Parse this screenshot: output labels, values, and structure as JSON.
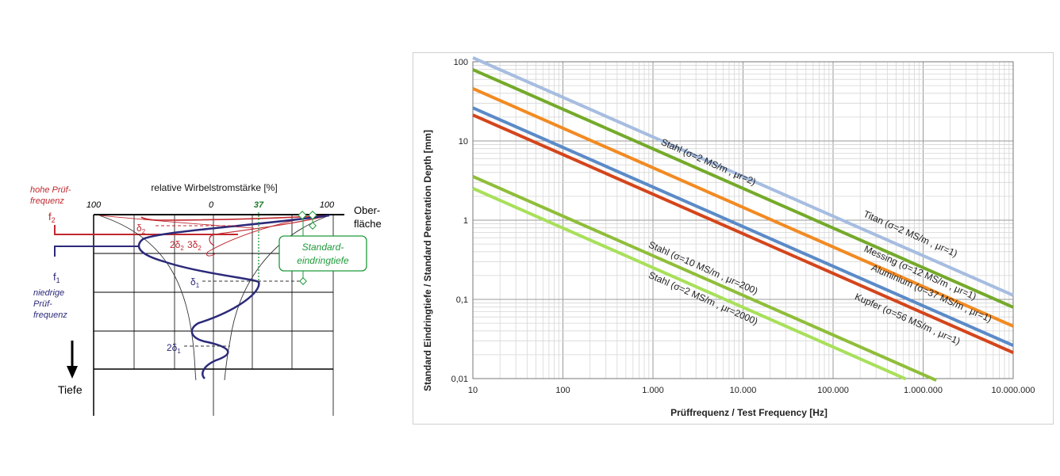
{
  "left_figure": {
    "title": "relative Wirbelstromstärke [%]",
    "scale_labels": {
      "left": "100",
      "center": "0",
      "marker": "37",
      "right": "100"
    },
    "surface_label": [
      "Ober-",
      "fläche"
    ],
    "depth_label": "Tiefe",
    "high_freq_label": [
      "hohe Prüf-",
      "frequenz"
    ],
    "f2_label": "f",
    "f2_sub": "2",
    "low_freq_label": [
      "niedrige",
      "Prüf-",
      "frequenz"
    ],
    "f1_label": "f",
    "f1_sub": "1",
    "delta2_label": "δ",
    "delta2_sub": "2",
    "two_delta2_label": "2δ",
    "three_delta2_label": "3δ",
    "delta1_label": "δ",
    "delta1_sub": "1",
    "two_delta1_label": "2δ",
    "standard_depth_label": [
      "Standard-",
      "eindringtiefe"
    ],
    "colors": {
      "high": "#c0282f",
      "low": "#2b2a7a",
      "standard": "#1f9a3a",
      "grid": "#000000"
    }
  },
  "chart_data": {
    "type": "line",
    "title": "",
    "xlabel": "Prüffrequenz / Test Frequency  [Hz]",
    "ylabel": "Standard Eindringtiefe / Standard Penetration Depth [mm]",
    "xscale": "log",
    "yscale": "log",
    "xlim": [
      10,
      10000000
    ],
    "ylim": [
      0.01,
      100
    ],
    "grid": true,
    "x_ticks": [
      {
        "value": 10,
        "label": "10"
      },
      {
        "value": 100,
        "label": "100"
      },
      {
        "value": 1000,
        "label": "1.000"
      },
      {
        "value": 10000,
        "label": "10.000"
      },
      {
        "value": 100000,
        "label": "100.000"
      },
      {
        "value": 1000000,
        "label": "1.000.000"
      },
      {
        "value": 10000000,
        "label": "10.000.000"
      }
    ],
    "y_ticks": [
      {
        "value": 0.01,
        "label": "0,01"
      },
      {
        "value": 0.1,
        "label": "0,1"
      },
      {
        "value": 1,
        "label": "1"
      },
      {
        "value": 10,
        "label": "10"
      },
      {
        "value": 100,
        "label": "100"
      }
    ],
    "series": [
      {
        "name": "Titan (σ=2 MS/m , μr=1)",
        "color": "#a6bde0",
        "x": [
          10,
          10000000
        ],
        "y": [
          112.5,
          0.1125
        ],
        "label_at": {
          "x": 700000,
          "y": 0.62
        }
      },
      {
        "name": "Stahl (σ=2 MS/m , μr=2)",
        "color": "#74aa2a",
        "x": [
          10,
          10000000
        ],
        "y": [
          79.6,
          0.0796
        ],
        "label_at": {
          "x": 4000,
          "y": 5.0
        }
      },
      {
        "name": "Messing (σ=12 MS/m , μr=1)",
        "color": "#f28a22",
        "x": [
          10,
          10000000
        ],
        "y": [
          45.9,
          0.0459
        ],
        "label_at": {
          "x": 900000,
          "y": 0.2
        }
      },
      {
        "name": "Aluminium (σ=37 MS/m , μr=1)",
        "color": "#5b8ac7",
        "x": [
          10,
          10000000
        ],
        "y": [
          26.2,
          0.0262
        ],
        "label_at": {
          "x": 1200000,
          "y": 0.11
        }
      },
      {
        "name": "Kupfer (σ=56 MS/m , μr=1)",
        "color": "#d4451b",
        "x": [
          10,
          10000000
        ],
        "y": [
          21.3,
          0.0213
        ],
        "label_at": {
          "x": 650000,
          "y": 0.052
        }
      },
      {
        "name": "Stahl (σ=10 MS/m , μr=200)",
        "color": "#8fbe3a",
        "x": [
          10,
          1400000
        ],
        "y": [
          3.56,
          0.0095
        ],
        "label_at": {
          "x": 3500,
          "y": 0.23
        }
      },
      {
        "name": "Stahl (σ=2 MS/m , μr=2000)",
        "color": "#a8e05a",
        "x": [
          10,
          640000
        ],
        "y": [
          2.52,
          0.0099
        ],
        "label_at": {
          "x": 3500,
          "y": 0.095
        }
      }
    ]
  }
}
